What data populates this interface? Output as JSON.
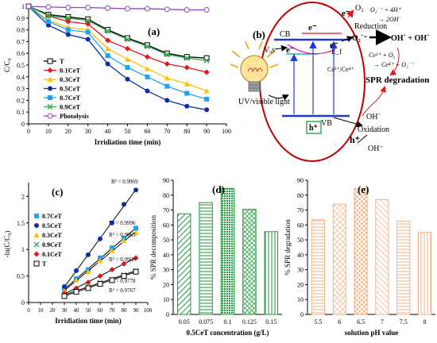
{
  "chart_data": [
    {
      "type": "line",
      "panel": "(a)",
      "xlabel": "Irridiation time (min)",
      "ylabel": "C/C₀",
      "x": [
        0,
        10,
        20,
        30,
        40,
        50,
        60,
        70,
        80,
        90
      ],
      "xticks": [
        0,
        10,
        20,
        30,
        40,
        50,
        60,
        70,
        80,
        90,
        100
      ],
      "yticks": [
        0,
        0.1,
        0.2,
        0.3,
        0.4,
        0.5,
        0.6,
        0.7,
        0.8,
        0.9,
        1
      ],
      "ytick_labels": [
        "0",
        "0.1",
        "0.2",
        "0.3",
        "0.4",
        "0.5",
        "0.6",
        "0.7",
        "0.8",
        "0.9",
        "1"
      ],
      "xlim": [
        0,
        100
      ],
      "ylim": [
        0,
        1
      ],
      "grid": false,
      "legend": "inside-left",
      "series": [
        {
          "name": "T",
          "color": "#000000",
          "marker": "square-open",
          "values": [
            1,
            0.93,
            0.91,
            0.89,
            0.8,
            0.73,
            0.67,
            0.6,
            0.57,
            0.56
          ]
        },
        {
          "name": "0.1CeT",
          "color": "#e8141c",
          "marker": "diamond",
          "values": [
            1,
            0.92,
            0.87,
            0.85,
            0.71,
            0.64,
            0.57,
            0.51,
            0.48,
            0.44
          ]
        },
        {
          "name": "0.3CeT",
          "color": "#ffc000",
          "marker": "triangle",
          "values": [
            1,
            0.88,
            0.82,
            0.8,
            0.64,
            0.55,
            0.47,
            0.39,
            0.34,
            0.28
          ]
        },
        {
          "name": "0.5CeT",
          "color": "#0b2ca8",
          "marker": "circle",
          "values": [
            1,
            0.84,
            0.76,
            0.72,
            0.51,
            0.38,
            0.28,
            0.2,
            0.15,
            0.12
          ]
        },
        {
          "name": "0.7CeT",
          "color": "#1ea3ee",
          "marker": "square",
          "values": [
            1,
            0.87,
            0.8,
            0.78,
            0.58,
            0.48,
            0.4,
            0.32,
            0.26,
            0.21
          ]
        },
        {
          "name": "0.9CeT",
          "color": "#2fae4a",
          "marker": "x",
          "values": [
            1,
            0.92,
            0.9,
            0.88,
            0.79,
            0.72,
            0.66,
            0.59,
            0.56,
            0.54
          ]
        },
        {
          "name": "Photolysis",
          "color": "#8e44c8",
          "marker": "circle-open",
          "values": [
            1,
            0.995,
            0.99,
            0.99,
            0.985,
            0.98,
            0.98,
            0.975,
            0.97,
            0.97
          ]
        }
      ]
    },
    {
      "type": "diagram",
      "panel": "(b)",
      "labels": {
        "cb": "CB",
        "vb": "VB",
        "e": "e⁻",
        "vos": "Vₒs",
        "ef": "−E_f",
        "o2": "O₂",
        "reduction": "Reduction",
        "o2rad": "O₂˙⁻",
        "oh_products": "OH˙ + OH˙",
        "ce": "Ce³⁺/Ce⁴⁺",
        "eq1a": "O₂˙⁻ + 4H⁺",
        "eq1b": "→ 2OH˙",
        "eq2a": "Ce³⁺ + O₂",
        "eq2b": "→ Ce⁴⁺ + O₂˙⁻",
        "spr": "SPR degradation",
        "light": "UV/visible light",
        "hplus": "h⁺",
        "oxidation": "Oxidation",
        "oh_rad": "OH˙",
        "oh_ion": "OH⁻",
        "hplus2": "h⁺"
      }
    },
    {
      "type": "scatter",
      "panel": "(c)",
      "xlabel": "Irridiation time (min)",
      "ylabel": "-ln(C/C₀)",
      "x": [
        30,
        40,
        50,
        60,
        70,
        80,
        90
      ],
      "xticks": [
        0,
        10,
        20,
        30,
        40,
        50,
        60,
        70,
        80,
        90,
        100
      ],
      "yticks": [
        0,
        0.5,
        1,
        1.5,
        2
      ],
      "ytick_labels": [
        "0",
        "0.5",
        "1",
        "1.5",
        "2"
      ],
      "xlim": [
        0,
        100
      ],
      "ylim": [
        0,
        2.2
      ],
      "grid": false,
      "legend": "inside-left",
      "series": [
        {
          "name": "0.7CeT",
          "color": "#1ea3ee",
          "marker": "square",
          "r2": "R² = 0.9996",
          "values": [
            0.25,
            0.45,
            0.62,
            0.84,
            1.03,
            1.21,
            1.4
          ]
        },
        {
          "name": "0.5CeT",
          "color": "#0b2ca8",
          "marker": "circle",
          "r2": "R² = 0.9969",
          "values": [
            0.3,
            0.6,
            0.9,
            1.2,
            1.5,
            1.85,
            2.12
          ]
        },
        {
          "name": "0.3CeT",
          "color": "#ffc000",
          "marker": "triangle",
          "r2": "R² = 0.9963",
          "values": [
            0.22,
            0.42,
            0.58,
            0.79,
            0.98,
            1.17,
            1.32
          ]
        },
        {
          "name": "0.9CeT",
          "color": "#2fae4a",
          "marker": "x",
          "r2": "R² = 0.9778",
          "values": [
            0.14,
            0.22,
            0.3,
            0.38,
            0.44,
            0.52,
            0.6
          ]
        },
        {
          "name": "0.1CeT",
          "color": "#e8141c",
          "marker": "diamond",
          "r2": "R² = 0.9909",
          "values": [
            0.17,
            0.27,
            0.38,
            0.5,
            0.62,
            0.73,
            0.84
          ]
        },
        {
          "name": "T",
          "color": "#000000",
          "marker": "square-open",
          "r2": "R² = 0.9767",
          "values": [
            0.12,
            0.2,
            0.27,
            0.35,
            0.42,
            0.5,
            0.58
          ]
        }
      ]
    },
    {
      "type": "bar",
      "panel": "(d)",
      "xlabel": "0.5CeT concentration (g/L)",
      "ylabel": "% SPR decomposition",
      "categories": [
        "0.05",
        "0.075",
        "0.1",
        "0.125",
        "0.15"
      ],
      "values": [
        67.5,
        75,
        84.5,
        70.5,
        55.5
      ],
      "yticks": [
        0,
        10,
        20,
        30,
        40,
        50,
        60,
        70,
        80,
        90
      ],
      "ylim": [
        0,
        90
      ],
      "color": "#1e9a3a",
      "patterns": [
        "diag",
        "hlines",
        "dense",
        "cross",
        "vlines"
      ]
    },
    {
      "type": "bar",
      "panel": "(e)",
      "xlabel": "solution pH value",
      "ylabel": "% SPR degradation",
      "categories": [
        "5.5",
        "6",
        "6.5",
        "7",
        "7.5",
        "8"
      ],
      "values": [
        63.5,
        74,
        84.5,
        77,
        62.5,
        55
      ],
      "yticks": [
        0,
        10,
        20,
        30,
        40,
        50,
        60,
        70,
        80,
        90
      ],
      "ylim": [
        0,
        90
      ],
      "color": "#f4b183",
      "patterns": [
        "hlines",
        "cross",
        "diamond",
        "diag",
        "hlines",
        "vlines"
      ]
    }
  ]
}
